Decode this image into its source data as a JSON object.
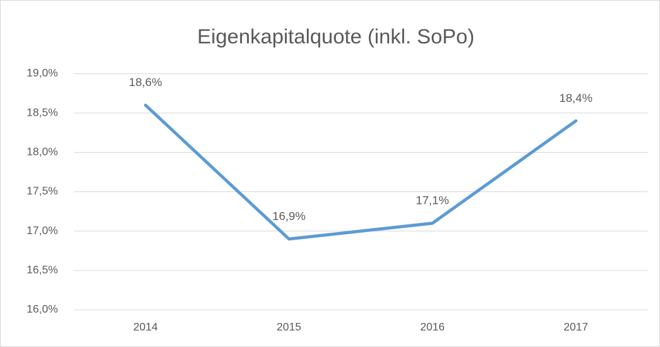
{
  "chart_data": {
    "type": "line",
    "title": "Eigenkapitalquote (inkl. SoPo)",
    "categories": [
      "2014",
      "2015",
      "2016",
      "2017"
    ],
    "series": [
      {
        "name": "Eigenkapitalquote",
        "color": "#5b9bd5",
        "values": [
          18.6,
          16.9,
          17.1,
          18.4
        ],
        "value_labels": [
          "18,6%",
          "16,9%",
          "17,1%",
          "18,4%"
        ]
      }
    ],
    "ylim": [
      16,
      19
    ],
    "yticks": [
      {
        "value": 16,
        "label": "16,0%"
      },
      {
        "value": 16.5,
        "label": "16,5%"
      },
      {
        "value": 17,
        "label": "17,0%"
      },
      {
        "value": 17.5,
        "label": "17,5%"
      },
      {
        "value": 18,
        "label": "18,0%"
      },
      {
        "value": 18.5,
        "label": "18,5%"
      },
      {
        "value": 19,
        "label": "19,0%"
      }
    ],
    "grid": true
  }
}
